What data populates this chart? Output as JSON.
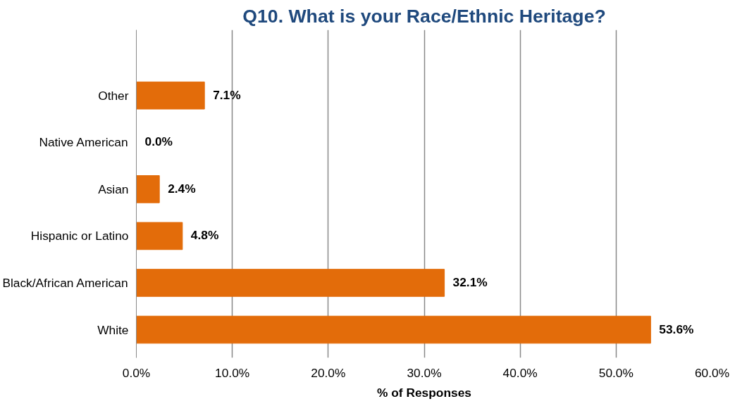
{
  "chart_data": {
    "type": "bar",
    "orientation": "horizontal",
    "title": "Q10. What is your Race/Ethnic Heritage?",
    "xlabel": "% of Responses",
    "categories": [
      "Other",
      "Native American",
      "Asian",
      "Hispanic or Latino",
      "Black/African American",
      "White"
    ],
    "values": [
      7.1,
      0.0,
      2.4,
      4.8,
      32.1,
      53.6
    ],
    "value_labels": [
      "7.1%",
      "0.0%",
      "2.4%",
      "4.8%",
      "32.1%",
      "53.6%"
    ],
    "color": "#e36c0a",
    "xlim": [
      0,
      60
    ],
    "xticks": [
      {
        "value": 0,
        "label": "0.0%"
      },
      {
        "value": 10,
        "label": "10.0%"
      },
      {
        "value": 20,
        "label": "20.0%"
      },
      {
        "value": 30,
        "label": "30.0%"
      },
      {
        "value": 40,
        "label": "40.0%"
      },
      {
        "value": 50,
        "label": "50.0%"
      },
      {
        "value": 60,
        "label": "60.0%"
      }
    ],
    "grid": "x"
  }
}
